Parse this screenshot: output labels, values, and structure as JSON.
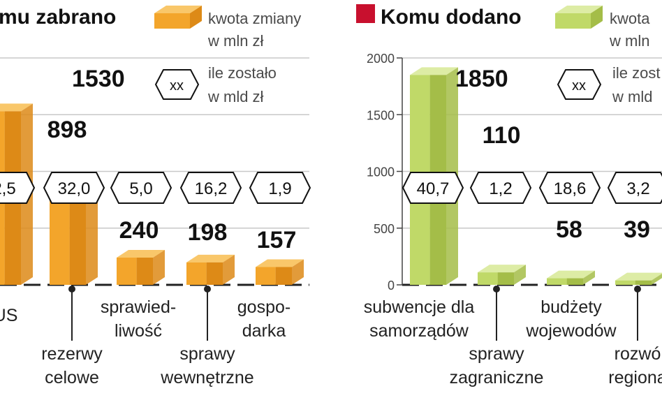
{
  "colors": {
    "orange_top": "#F9C76A",
    "orange_front": "#F3A52B",
    "orange_side": "#DD8A17",
    "green_top": "#DDECA5",
    "green_front": "#C0D968",
    "green_side": "#A4BD48",
    "title_square": "#C8102E"
  },
  "legend": {
    "left_change": [
      "kwota zmiany",
      "w mln zł"
    ],
    "left_remain": [
      "ile zostało",
      "w mld zł"
    ],
    "right_change": [
      "kwota",
      "w mln"
    ],
    "right_remain": [
      "ile zost",
      "w mld"
    ],
    "hex_placeholder": "xx"
  },
  "chart_data": [
    {
      "type": "bar",
      "title": "mu zabrano",
      "categories": [
        "US",
        "rezerwy celowe",
        "sprawiedliwość",
        "sprawy wewnętrzne",
        "gospodarka"
      ],
      "category_lines": [
        [
          "US"
        ],
        [
          "rezerwy",
          "celowe"
        ],
        [
          "sprawied-",
          "liwość"
        ],
        [
          "sprawy",
          "wewnętrzne"
        ],
        [
          "gospo-",
          "darka"
        ]
      ],
      "values": [
        1530,
        898,
        240,
        198,
        157
      ],
      "value_labels": [
        "1530",
        "898",
        "240",
        "198",
        "157"
      ],
      "remaining": [
        "2,5",
        "32,0",
        "5,0",
        "16,2",
        "1,9"
      ],
      "ylim": [
        0,
        2000
      ]
    },
    {
      "type": "bar",
      "title": "Komu dodano",
      "categories": [
        "subwencje dla samorządów",
        "sprawy zagraniczne",
        "budżety wojewodów",
        "rozwój regionalny"
      ],
      "category_lines": [
        [
          "subwencje dla",
          "samorządów"
        ],
        [
          "sprawy",
          "zagraniczne"
        ],
        [
          "budżety",
          "wojewodów"
        ],
        [
          "rozwó",
          "regiona"
        ]
      ],
      "values": [
        1850,
        110,
        58,
        39
      ],
      "value_labels": [
        "1850",
        "110",
        "58",
        "39"
      ],
      "remaining": [
        "40,7",
        "1,2",
        "18,6",
        "3,2"
      ],
      "ylim": [
        0,
        2000
      ],
      "yticks": [
        "0",
        "500",
        "1000",
        "1500",
        "2000"
      ]
    }
  ]
}
